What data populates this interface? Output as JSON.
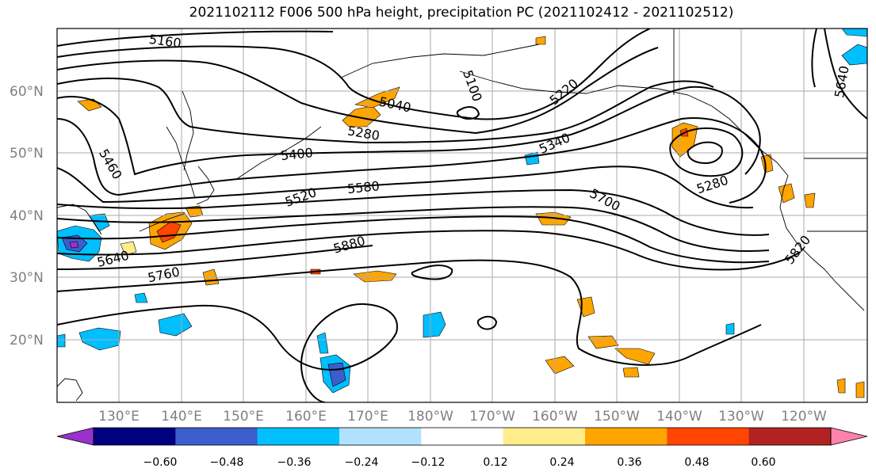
{
  "title": "2021102112 F006 500 hPa height, precipitation PC (2021102412 - 2021102512)",
  "lat_labels": [
    "60°N",
    "50°N",
    "40°N",
    "30°N",
    "20°N"
  ],
  "lon_labels": [
    "130°E",
    "140°E",
    "150°E",
    "160°E",
    "170°E",
    "180°W",
    "170°W",
    "160°W",
    "150°W",
    "140°W",
    "130°W",
    "120°W"
  ],
  "contour_labels": [
    "5160",
    "5100",
    "5220",
    "5040",
    "5640",
    "5280",
    "5340",
    "5460",
    "5400",
    "5280",
    "5520",
    "5580",
    "5700",
    "5640",
    "5880",
    "5820",
    "5760"
  ],
  "colorbar": {
    "colors": [
      "#9932cc",
      "#000080",
      "#3a5fcd",
      "#00bfff",
      "#b0e2ff",
      "#ffffff",
      "#ffec8b",
      "#ffa500",
      "#ff4500",
      "#b22222",
      "#ff82ab"
    ],
    "ticks": [
      "−0.60",
      "−0.48",
      "−0.36",
      "−0.24",
      "−0.12",
      "0.12",
      "0.24",
      "0.36",
      "0.48",
      "0.60"
    ]
  }
}
